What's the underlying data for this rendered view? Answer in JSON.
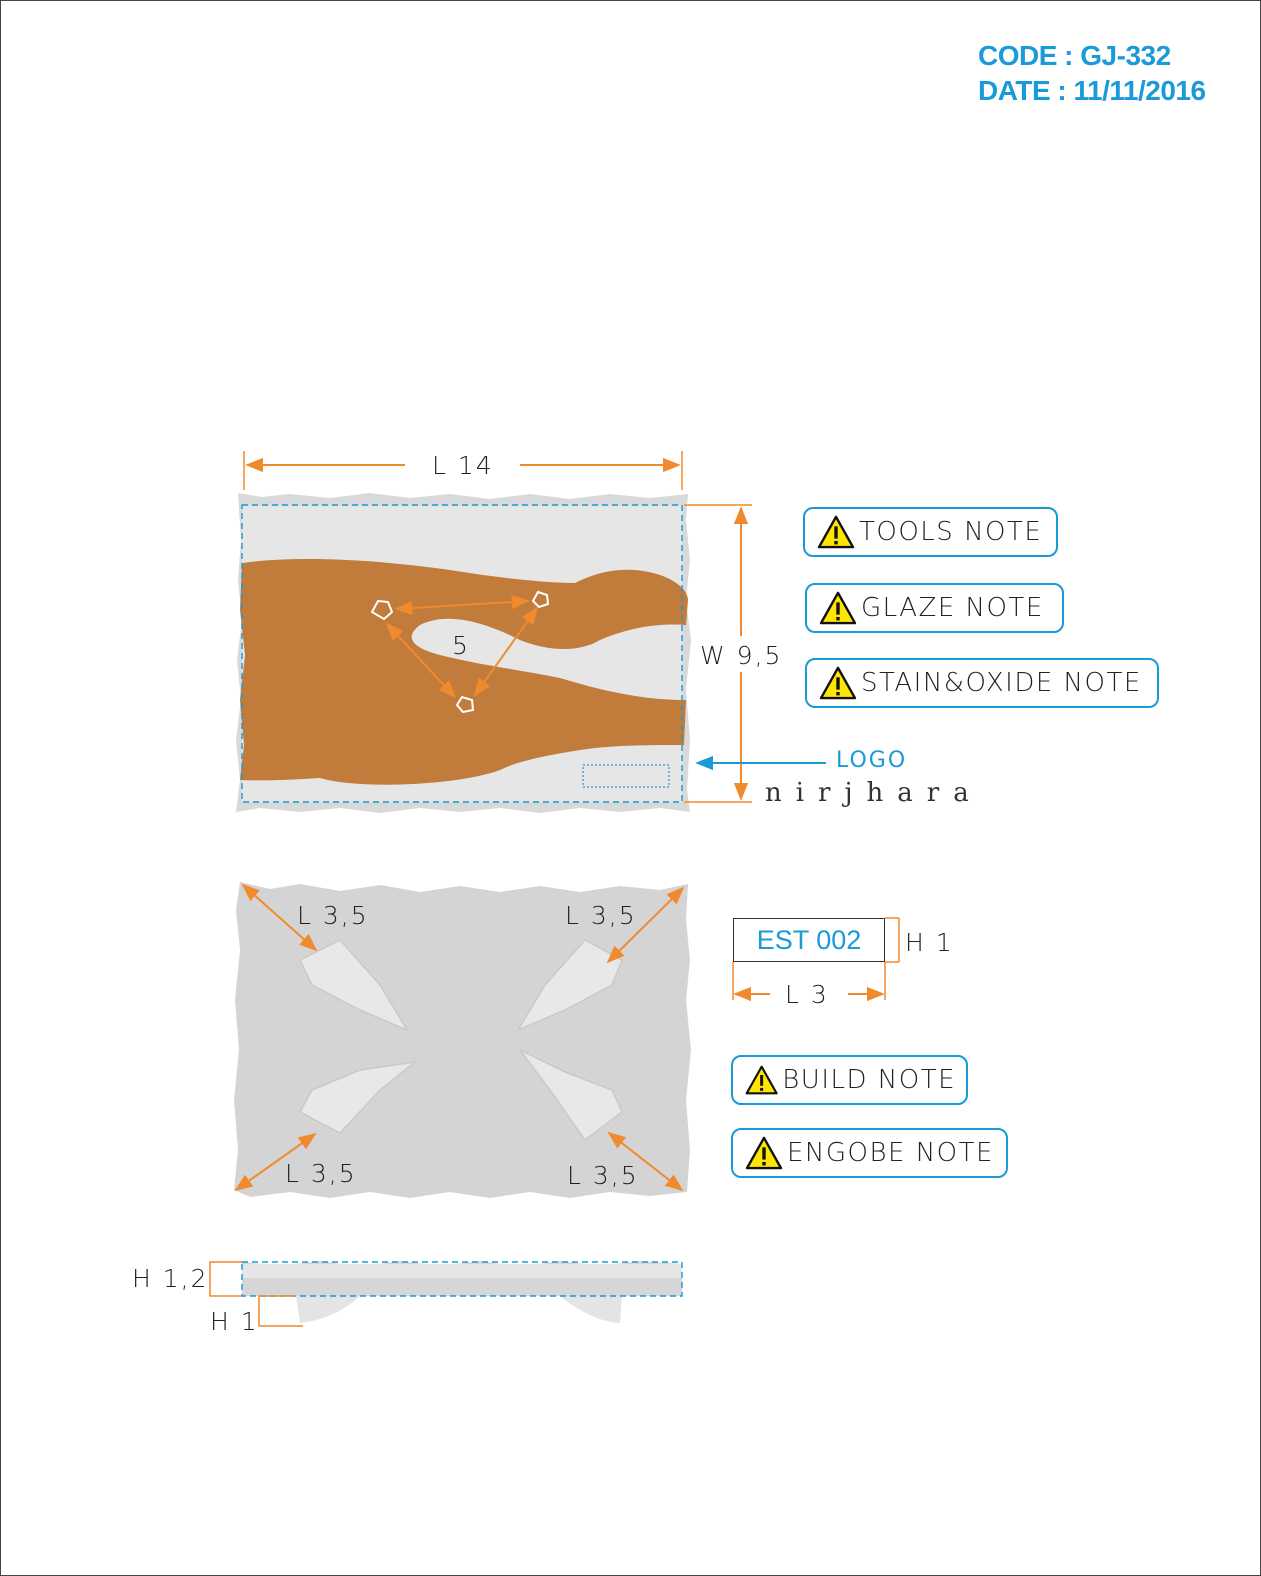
{
  "header": {
    "code": "CODE : GJ-332",
    "date": "DATE : 11/11/2016"
  },
  "dimensions": {
    "top_length": "L 14",
    "top_width": "W 9,5",
    "hole_spacing": "5",
    "foot_top_left": "L 3,5",
    "foot_top_right": "L 3,5",
    "foot_bottom_left": "L 3,5",
    "foot_bottom_right": "L 3,5",
    "side_height": "H 1,2",
    "foot_height": "H 1",
    "stamp_height": "H 1",
    "stamp_length": "L 3"
  },
  "logo": {
    "label": "LOGO",
    "brand": "nirjhara"
  },
  "stamp": {
    "text": "EST 002"
  },
  "notes": [
    {
      "label": "TOOLS NOTE"
    },
    {
      "label": "GLAZE NOTE"
    },
    {
      "label": "STAIN&OXIDE NOTE"
    },
    {
      "label": "BUILD NOTE"
    },
    {
      "label": "ENGOBE NOTE"
    }
  ],
  "colors": {
    "accent_blue": "#1a9ad6",
    "dimension_orange": "#f08a2e",
    "glaze_brown": "#c17b3a",
    "clay_gray": "#d6d6d6"
  }
}
